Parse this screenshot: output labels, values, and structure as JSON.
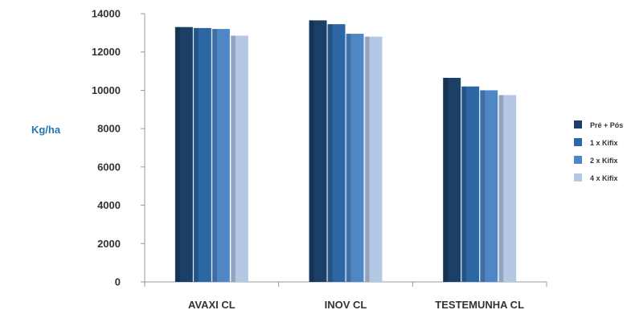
{
  "chart_data": {
    "type": "bar",
    "ylabel": "Kg/ha",
    "ylabel_color": "#1f78b4",
    "categories": [
      "AVAXI CL",
      "INOV CL",
      "TESTEMUNHA CL"
    ],
    "yticks": [
      "0",
      "2000",
      "4000",
      "6000",
      "8000",
      "10000",
      "12000",
      "14000"
    ],
    "ylim": [
      0,
      14000
    ],
    "grid": false,
    "legend_position": "right",
    "series": [
      {
        "name": "Pré + Pós",
        "color": "#1b3f66",
        "values": [
          13300,
          13650,
          10650
        ]
      },
      {
        "name": "1 x Kifix",
        "color": "#2c66a3",
        "values": [
          13250,
          13450,
          10200
        ]
      },
      {
        "name": "2 x Kifix",
        "color": "#4f86c6",
        "values": [
          13200,
          12950,
          10000
        ]
      },
      {
        "name": "4 x Kifix",
        "color": "#b4c7e4",
        "values": [
          12850,
          12800,
          9750
        ]
      }
    ]
  }
}
